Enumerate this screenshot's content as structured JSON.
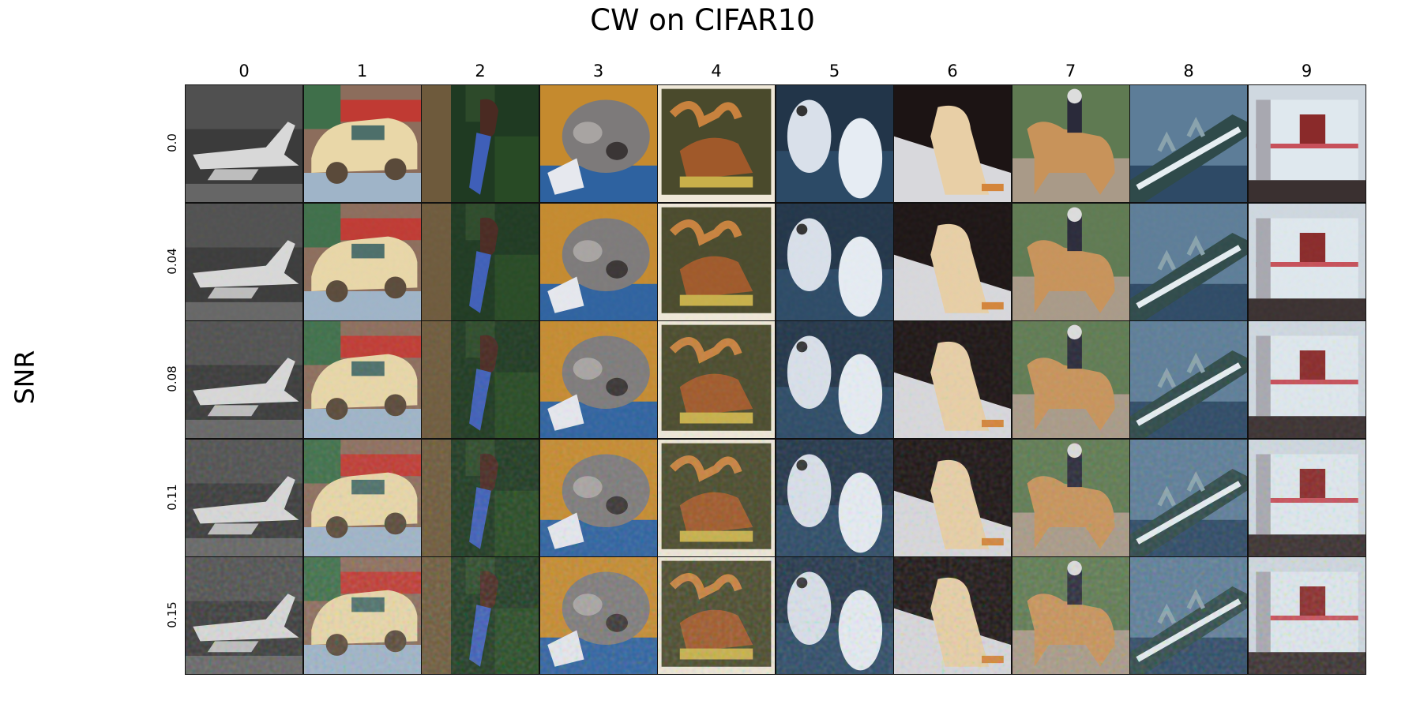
{
  "figure": {
    "title": "CW on CIFAR10",
    "y_axis_label": "SNR",
    "columns": [
      "0",
      "1",
      "2",
      "3",
      "4",
      "5",
      "6",
      "7",
      "8",
      "9"
    ],
    "rows": [
      "0.0",
      "0.04",
      "0.08",
      "0.11",
      "0.15"
    ],
    "image_subjects": [
      "airplane",
      "car",
      "bird",
      "cat",
      "deer",
      "dog",
      "frog",
      "horse",
      "ship",
      "truck"
    ]
  }
}
